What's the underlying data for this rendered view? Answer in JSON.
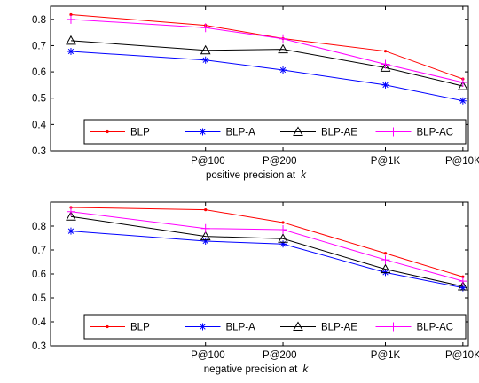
{
  "chart_data": [
    {
      "type": "line",
      "x": [
        0.3,
        1,
        2,
        5,
        10
      ],
      "x_scale": "log",
      "xlim": [
        0.25,
        10.5
      ],
      "ylim": [
        0.3,
        0.85
      ],
      "yticks": [
        0.3,
        0.4,
        0.5,
        0.6,
        0.7,
        0.8
      ],
      "ytick_labels": [
        "0.3",
        "0.4",
        "0.5",
        "0.6",
        "0.7",
        "0.8"
      ],
      "xtick_positions": [
        1,
        2,
        5,
        10
      ],
      "xtick_labels": [
        "P@100",
        "P@200",
        "P@1K",
        "P@10K"
      ],
      "xlabel": "positive precision at",
      "xlabel_var": "k",
      "grid": false,
      "legend_position": "bottom-right",
      "series": [
        {
          "name": "BLP",
          "color": "#ff0000",
          "marker": "dot",
          "values": [
            0.818,
            0.777,
            0.727,
            0.679,
            0.573
          ]
        },
        {
          "name": "BLP-A",
          "color": "#0000ff",
          "marker": "asterisk",
          "values": [
            0.678,
            0.645,
            0.607,
            0.55,
            0.49
          ]
        },
        {
          "name": "BLP-AE",
          "color": "#000000",
          "marker": "triangle",
          "values": [
            0.719,
            0.682,
            0.686,
            0.616,
            0.546
          ]
        },
        {
          "name": "BLP-AC",
          "color": "#ff00ff",
          "marker": "plus",
          "values": [
            0.8,
            0.768,
            0.726,
            0.629,
            0.56
          ]
        }
      ]
    },
    {
      "type": "line",
      "x": [
        0.3,
        1,
        2,
        5,
        10
      ],
      "x_scale": "log",
      "xlim": [
        0.25,
        10.5
      ],
      "ylim": [
        0.3,
        0.9
      ],
      "yticks": [
        0.3,
        0.4,
        0.5,
        0.6,
        0.7,
        0.8
      ],
      "ytick_labels": [
        "0.3",
        "0.4",
        "0.5",
        "0.6",
        "0.7",
        "0.8"
      ],
      "xtick_positions": [
        1,
        2,
        5,
        10
      ],
      "xtick_labels": [
        "P@100",
        "P@200",
        "P@1K",
        "P@10K"
      ],
      "xlabel": "negative precision at",
      "xlabel_var": "k",
      "grid": false,
      "legend_position": "bottom-right",
      "series": [
        {
          "name": "BLP",
          "color": "#ff0000",
          "marker": "dot",
          "values": [
            0.878,
            0.868,
            0.815,
            0.686,
            0.588
          ]
        },
        {
          "name": "BLP-A",
          "color": "#0000ff",
          "marker": "asterisk",
          "values": [
            0.779,
            0.737,
            0.725,
            0.606,
            0.542
          ]
        },
        {
          "name": "BLP-AE",
          "color": "#000000",
          "marker": "triangle",
          "values": [
            0.84,
            0.757,
            0.747,
            0.62,
            0.548
          ]
        },
        {
          "name": "BLP-AC",
          "color": "#ff00ff",
          "marker": "plus",
          "values": [
            0.86,
            0.79,
            0.785,
            0.659,
            0.57
          ]
        }
      ]
    }
  ]
}
